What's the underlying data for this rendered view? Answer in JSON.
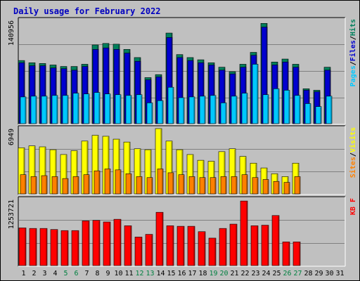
{
  "colors": {
    "background": "#c0c0c0",
    "panel_bg": "#c0c0c0",
    "grid": "#808080",
    "title": "#0000c0",
    "hits": "#00805c",
    "files": "#0000d0",
    "pages": "#00c8ff",
    "visits": "#ffff00",
    "sites": "#ff8000",
    "kbytes": "#ff0000",
    "xlabel_weekday": "#000000",
    "xlabel_weekend": "#008040"
  },
  "chart_data": {
    "type": "bar",
    "title": "Daily usage for February 2022",
    "days": [
      "1",
      "2",
      "3",
      "4",
      "5",
      "6",
      "7",
      "8",
      "9",
      "10",
      "11",
      "12",
      "13",
      "14",
      "15",
      "16",
      "17",
      "18",
      "19",
      "20",
      "21",
      "22",
      "23",
      "24",
      "25",
      "26",
      "27",
      "28",
      "29",
      "30",
      "31"
    ],
    "weekend_days": [
      "5",
      "6",
      "12",
      "13",
      "19",
      "20",
      "26",
      "27"
    ],
    "panels": [
      {
        "id": "hits_files_pages",
        "ylabel_max": "140956",
        "ymax": 140956,
        "right_labels": [
          "Pages",
          "Files",
          "Hits"
        ],
        "series": [
          {
            "name": "Hits",
            "values": [
              85000,
              82000,
              81000,
              79000,
              77000,
              77000,
              80000,
              106000,
              108000,
              107000,
              100000,
              89000,
              62000,
              66000,
              122000,
              93000,
              89000,
              86000,
              82000,
              76000,
              70000,
              80000,
              96000,
              135000,
              83000,
              87000,
              80000,
              47000,
              45000,
              76000
            ]
          },
          {
            "name": "Files",
            "values": [
              82000,
              78000,
              78000,
              75000,
              74000,
              72000,
              77000,
              100000,
              102000,
              100000,
              95000,
              84000,
              59000,
              63000,
              116000,
              89000,
              85000,
              82000,
              79000,
              72000,
              67000,
              76000,
              92000,
              130000,
              79000,
              83000,
              76000,
              45000,
              43000,
              72000
            ]
          },
          {
            "name": "Pages",
            "values": [
              36000,
              37000,
              37000,
              38000,
              38000,
              41000,
              40000,
              42000,
              40000,
              39000,
              38000,
              39000,
              28000,
              31000,
              49000,
              35000,
              36000,
              37000,
              38000,
              28000,
              37000,
              41000,
              80000,
              39000,
              47000,
              45000,
              38000,
              27000,
              23000,
              37000
            ]
          }
        ]
      },
      {
        "id": "visits_sites",
        "ylabel_max": "6949",
        "ymax": 6949,
        "right_labels": [
          "Sites",
          "Visits"
        ],
        "series": [
          {
            "name": "Visits",
            "values": [
              4800,
              5000,
              4900,
              4600,
              4100,
              4500,
              5500,
              6100,
              6000,
              5700,
              5400,
              4700,
              4600,
              6800,
              5500,
              4600,
              4100,
              3500,
              3400,
              4400,
              4700,
              3900,
              3200,
              2700,
              2100,
              1800,
              3200
            ]
          },
          {
            "name": "Sites",
            "values": [
              2000,
              1800,
              1900,
              1800,
              1600,
              1800,
              2000,
              2400,
              2600,
              2500,
              2100,
              1800,
              1700,
              2600,
              2200,
              2000,
              1800,
              1700,
              1700,
              1800,
              1800,
              2000,
              1700,
              1500,
              1300,
              1200,
              1800
            ]
          }
        ]
      },
      {
        "id": "kbytes",
        "ylabel_max": "1253721",
        "ymax": 1253721,
        "right_labels": [
          "KB F"
        ],
        "series": [
          {
            "name": "KB F",
            "values": [
              700000,
              690000,
              690000,
              670000,
              650000,
              650000,
              830000,
              840000,
              810000,
              860000,
              740000,
              530000,
              580000,
              990000,
              740000,
              730000,
              730000,
              630000,
              510000,
              690000,
              770000,
              1200000,
              740000,
              750000,
              930000,
              440000,
              440000
            ]
          }
        ]
      }
    ]
  }
}
